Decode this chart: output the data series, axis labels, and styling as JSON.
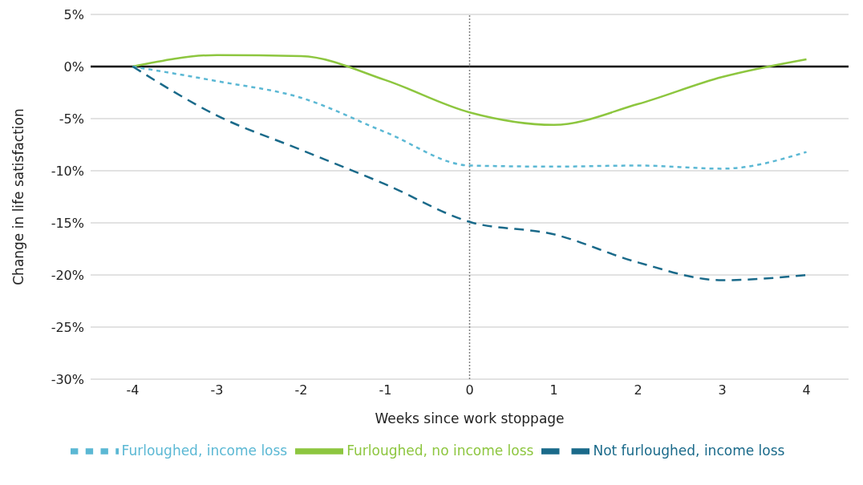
{
  "chart_data": {
    "type": "line",
    "xlabel": "Weeks since work stoppage",
    "ylabel": "Change in life satisfaction",
    "x": [
      -4,
      -3,
      -2,
      -1,
      0,
      1,
      2,
      3,
      4
    ],
    "series": [
      {
        "name": "Furloughed, no income loss",
        "color": "#8dc63f",
        "line_style": "solid",
        "values": [
          0,
          1.1,
          1.0,
          -1.3,
          -4.4,
          -5.6,
          -3.6,
          -1.0,
          0.7
        ]
      },
      {
        "name": "Furloughed, income loss",
        "color": "#5bb8d4",
        "line_style": "dotted",
        "values": [
          0,
          -1.4,
          -3.0,
          -6.3,
          -9.5,
          -9.6,
          -9.5,
          -9.8,
          -8.2
        ]
      },
      {
        "name": "Not furloughed, income loss",
        "color": "#1a6a8a",
        "line_style": "dashed",
        "values": [
          0,
          -4.7,
          -8.0,
          -11.3,
          -14.9,
          -16.1,
          -18.8,
          -20.5,
          -20.0
        ]
      }
    ],
    "xlim": [
      -4.5,
      4.5
    ],
    "xticks": [
      -4,
      -3,
      -2,
      -1,
      0,
      1,
      2,
      3,
      4
    ],
    "ylim": [
      -30,
      5
    ],
    "yticks": [
      {
        "value": -30,
        "label": "-30%"
      },
      {
        "value": -25,
        "label": "-25%"
      },
      {
        "value": -20,
        "label": "-20%"
      },
      {
        "value": -15,
        "label": "-15%"
      },
      {
        "value": -10,
        "label": "-10%"
      },
      {
        "value": -5,
        "label": "-5%"
      },
      {
        "value": 0,
        "label": "0%"
      },
      {
        "value": 5,
        "label": "5%"
      }
    ],
    "ref_lines": [
      {
        "axis": "y",
        "value": 0,
        "color": "#000000",
        "line_style": "solid"
      },
      {
        "axis": "x",
        "value": 0,
        "color": "#808080",
        "line_style": "dotted"
      }
    ],
    "grid": "y",
    "legend": "bottom",
    "marker": "none"
  }
}
